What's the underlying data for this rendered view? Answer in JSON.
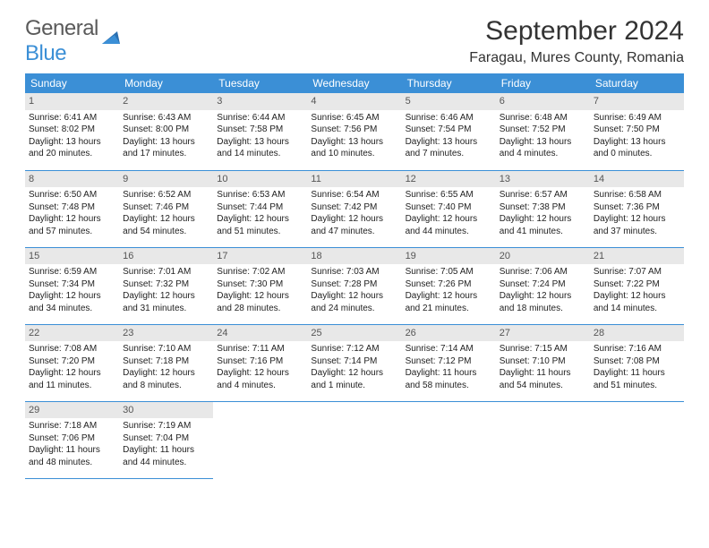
{
  "logo": {
    "text1": "General",
    "text2": "Blue"
  },
  "title": "September 2024",
  "location": "Faragau, Mures County, Romania",
  "day_headers": [
    "Sunday",
    "Monday",
    "Tuesday",
    "Wednesday",
    "Thursday",
    "Friday",
    "Saturday"
  ],
  "colors": {
    "header_bg": "#3b8fd6",
    "header_fg": "#ffffff",
    "daynum_bg": "#e8e8e8",
    "border": "#3b8fd6",
    "text": "#222222"
  },
  "weeks": [
    [
      {
        "day": "1",
        "sunrise": "6:41 AM",
        "sunset": "8:02 PM",
        "daylight": "13 hours and 20 minutes."
      },
      {
        "day": "2",
        "sunrise": "6:43 AM",
        "sunset": "8:00 PM",
        "daylight": "13 hours and 17 minutes."
      },
      {
        "day": "3",
        "sunrise": "6:44 AM",
        "sunset": "7:58 PM",
        "daylight": "13 hours and 14 minutes."
      },
      {
        "day": "4",
        "sunrise": "6:45 AM",
        "sunset": "7:56 PM",
        "daylight": "13 hours and 10 minutes."
      },
      {
        "day": "5",
        "sunrise": "6:46 AM",
        "sunset": "7:54 PM",
        "daylight": "13 hours and 7 minutes."
      },
      {
        "day": "6",
        "sunrise": "6:48 AM",
        "sunset": "7:52 PM",
        "daylight": "13 hours and 4 minutes."
      },
      {
        "day": "7",
        "sunrise": "6:49 AM",
        "sunset": "7:50 PM",
        "daylight": "13 hours and 0 minutes."
      }
    ],
    [
      {
        "day": "8",
        "sunrise": "6:50 AM",
        "sunset": "7:48 PM",
        "daylight": "12 hours and 57 minutes."
      },
      {
        "day": "9",
        "sunrise": "6:52 AM",
        "sunset": "7:46 PM",
        "daylight": "12 hours and 54 minutes."
      },
      {
        "day": "10",
        "sunrise": "6:53 AM",
        "sunset": "7:44 PM",
        "daylight": "12 hours and 51 minutes."
      },
      {
        "day": "11",
        "sunrise": "6:54 AM",
        "sunset": "7:42 PM",
        "daylight": "12 hours and 47 minutes."
      },
      {
        "day": "12",
        "sunrise": "6:55 AM",
        "sunset": "7:40 PM",
        "daylight": "12 hours and 44 minutes."
      },
      {
        "day": "13",
        "sunrise": "6:57 AM",
        "sunset": "7:38 PM",
        "daylight": "12 hours and 41 minutes."
      },
      {
        "day": "14",
        "sunrise": "6:58 AM",
        "sunset": "7:36 PM",
        "daylight": "12 hours and 37 minutes."
      }
    ],
    [
      {
        "day": "15",
        "sunrise": "6:59 AM",
        "sunset": "7:34 PM",
        "daylight": "12 hours and 34 minutes."
      },
      {
        "day": "16",
        "sunrise": "7:01 AM",
        "sunset": "7:32 PM",
        "daylight": "12 hours and 31 minutes."
      },
      {
        "day": "17",
        "sunrise": "7:02 AM",
        "sunset": "7:30 PM",
        "daylight": "12 hours and 28 minutes."
      },
      {
        "day": "18",
        "sunrise": "7:03 AM",
        "sunset": "7:28 PM",
        "daylight": "12 hours and 24 minutes."
      },
      {
        "day": "19",
        "sunrise": "7:05 AM",
        "sunset": "7:26 PM",
        "daylight": "12 hours and 21 minutes."
      },
      {
        "day": "20",
        "sunrise": "7:06 AM",
        "sunset": "7:24 PM",
        "daylight": "12 hours and 18 minutes."
      },
      {
        "day": "21",
        "sunrise": "7:07 AM",
        "sunset": "7:22 PM",
        "daylight": "12 hours and 14 minutes."
      }
    ],
    [
      {
        "day": "22",
        "sunrise": "7:08 AM",
        "sunset": "7:20 PM",
        "daylight": "12 hours and 11 minutes."
      },
      {
        "day": "23",
        "sunrise": "7:10 AM",
        "sunset": "7:18 PM",
        "daylight": "12 hours and 8 minutes."
      },
      {
        "day": "24",
        "sunrise": "7:11 AM",
        "sunset": "7:16 PM",
        "daylight": "12 hours and 4 minutes."
      },
      {
        "day": "25",
        "sunrise": "7:12 AM",
        "sunset": "7:14 PM",
        "daylight": "12 hours and 1 minute."
      },
      {
        "day": "26",
        "sunrise": "7:14 AM",
        "sunset": "7:12 PM",
        "daylight": "11 hours and 58 minutes."
      },
      {
        "day": "27",
        "sunrise": "7:15 AM",
        "sunset": "7:10 PM",
        "daylight": "11 hours and 54 minutes."
      },
      {
        "day": "28",
        "sunrise": "7:16 AM",
        "sunset": "7:08 PM",
        "daylight": "11 hours and 51 minutes."
      }
    ],
    [
      {
        "day": "29",
        "sunrise": "7:18 AM",
        "sunset": "7:06 PM",
        "daylight": "11 hours and 48 minutes."
      },
      {
        "day": "30",
        "sunrise": "7:19 AM",
        "sunset": "7:04 PM",
        "daylight": "11 hours and 44 minutes."
      },
      null,
      null,
      null,
      null,
      null
    ]
  ],
  "labels": {
    "sunrise": "Sunrise: ",
    "sunset": "Sunset: ",
    "daylight": "Daylight: "
  }
}
